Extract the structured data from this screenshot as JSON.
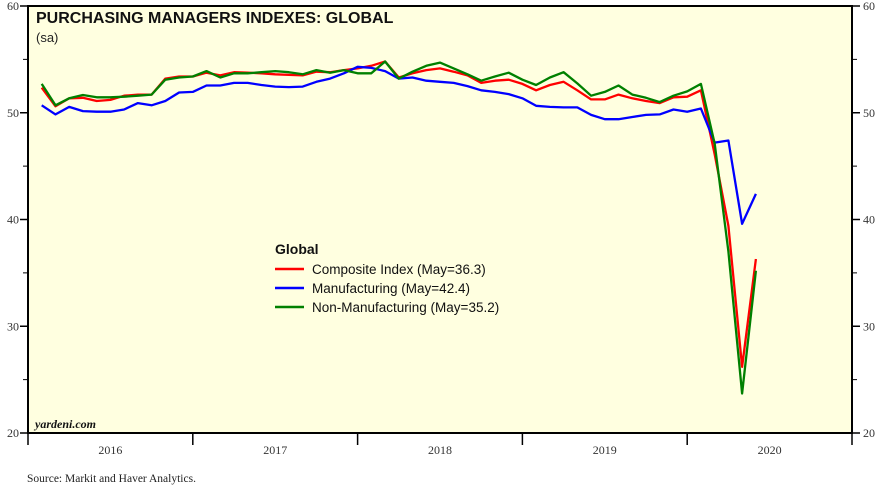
{
  "chart_data": {
    "type": "line",
    "title": "PURCHASING MANAGERS INDEXES: GLOBAL",
    "subtitle": "(sa)",
    "legend_title": "Global",
    "legend_placement": "center",
    "watermark": "yardeni.com",
    "source": "Source:  Markit and Haver Analytics.",
    "ylim": [
      20,
      60
    ],
    "yticks": [
      20,
      30,
      40,
      50,
      60
    ],
    "y_minor_ticks": [
      25,
      35,
      45,
      55
    ],
    "x_start": "2016-01",
    "x_end": "2020-12",
    "x_tick_labels": [
      "2016",
      "2017",
      "2018",
      "2019",
      "2020"
    ],
    "x_frequency": "monthly",
    "x": [
      "2016-01",
      "2016-02",
      "2016-03",
      "2016-04",
      "2016-05",
      "2016-06",
      "2016-07",
      "2016-08",
      "2016-09",
      "2016-10",
      "2016-11",
      "2016-12",
      "2017-01",
      "2017-02",
      "2017-03",
      "2017-04",
      "2017-05",
      "2017-06",
      "2017-07",
      "2017-08",
      "2017-09",
      "2017-10",
      "2017-11",
      "2017-12",
      "2018-01",
      "2018-02",
      "2018-03",
      "2018-04",
      "2018-05",
      "2018-06",
      "2018-07",
      "2018-08",
      "2018-09",
      "2018-10",
      "2018-11",
      "2018-12",
      "2019-01",
      "2019-02",
      "2019-03",
      "2019-04",
      "2019-05",
      "2019-06",
      "2019-07",
      "2019-08",
      "2019-09",
      "2019-10",
      "2019-11",
      "2019-12",
      "2020-01",
      "2020-02",
      "2020-03",
      "2020-04",
      "2020-05"
    ],
    "background": "#FFFFE0",
    "series": [
      {
        "name": "Composite Index (May=36.3)",
        "color": "#FF0000",
        "values": [
          52.35,
          50.6,
          51.35,
          51.4,
          51.1,
          51.2,
          51.6,
          51.7,
          51.7,
          53.2,
          53.4,
          53.4,
          53.75,
          53.5,
          53.8,
          53.75,
          53.7,
          53.6,
          53.55,
          53.5,
          53.85,
          53.8,
          54.0,
          54.15,
          54.4,
          54.8,
          53.3,
          53.7,
          54.0,
          54.15,
          53.85,
          53.5,
          52.8,
          53.0,
          53.1,
          52.7,
          52.1,
          52.6,
          52.9,
          52.1,
          51.25,
          51.25,
          51.7,
          51.35,
          51.1,
          50.9,
          51.45,
          51.5,
          52.1,
          46.1,
          39.4,
          26.2,
          36.3
        ]
      },
      {
        "name": "Manufacturing (May=42.4)",
        "color": "#0000FF",
        "values": [
          50.7,
          49.85,
          50.55,
          50.15,
          50.1,
          50.1,
          50.3,
          50.9,
          50.7,
          51.1,
          51.9,
          51.95,
          52.55,
          52.55,
          52.8,
          52.8,
          52.6,
          52.45,
          52.4,
          52.45,
          52.9,
          53.2,
          53.7,
          54.3,
          54.2,
          53.9,
          53.2,
          53.3,
          53.0,
          52.9,
          52.8,
          52.5,
          52.1,
          51.95,
          51.75,
          51.35,
          50.65,
          50.55,
          50.5,
          50.5,
          49.8,
          49.4,
          49.4,
          49.6,
          49.8,
          49.85,
          50.3,
          50.1,
          50.4,
          47.2,
          47.4,
          39.6,
          42.4
        ]
      },
      {
        "name": "Non-Manufacturing (May=35.2)",
        "color": "#008000",
        "values": [
          52.7,
          50.7,
          51.35,
          51.66,
          51.45,
          51.45,
          51.5,
          51.6,
          51.7,
          53.1,
          53.3,
          53.4,
          53.9,
          53.3,
          53.7,
          53.7,
          53.8,
          53.9,
          53.8,
          53.6,
          54.0,
          53.75,
          54.0,
          53.7,
          53.7,
          54.8,
          53.2,
          53.85,
          54.4,
          54.7,
          54.15,
          53.6,
          53.0,
          53.4,
          53.75,
          53.1,
          52.6,
          53.3,
          53.8,
          52.75,
          51.6,
          51.95,
          52.55,
          51.7,
          51.4,
          51.0,
          51.6,
          52.0,
          52.7,
          47.1,
          37.0,
          23.7,
          35.2
        ]
      }
    ]
  }
}
